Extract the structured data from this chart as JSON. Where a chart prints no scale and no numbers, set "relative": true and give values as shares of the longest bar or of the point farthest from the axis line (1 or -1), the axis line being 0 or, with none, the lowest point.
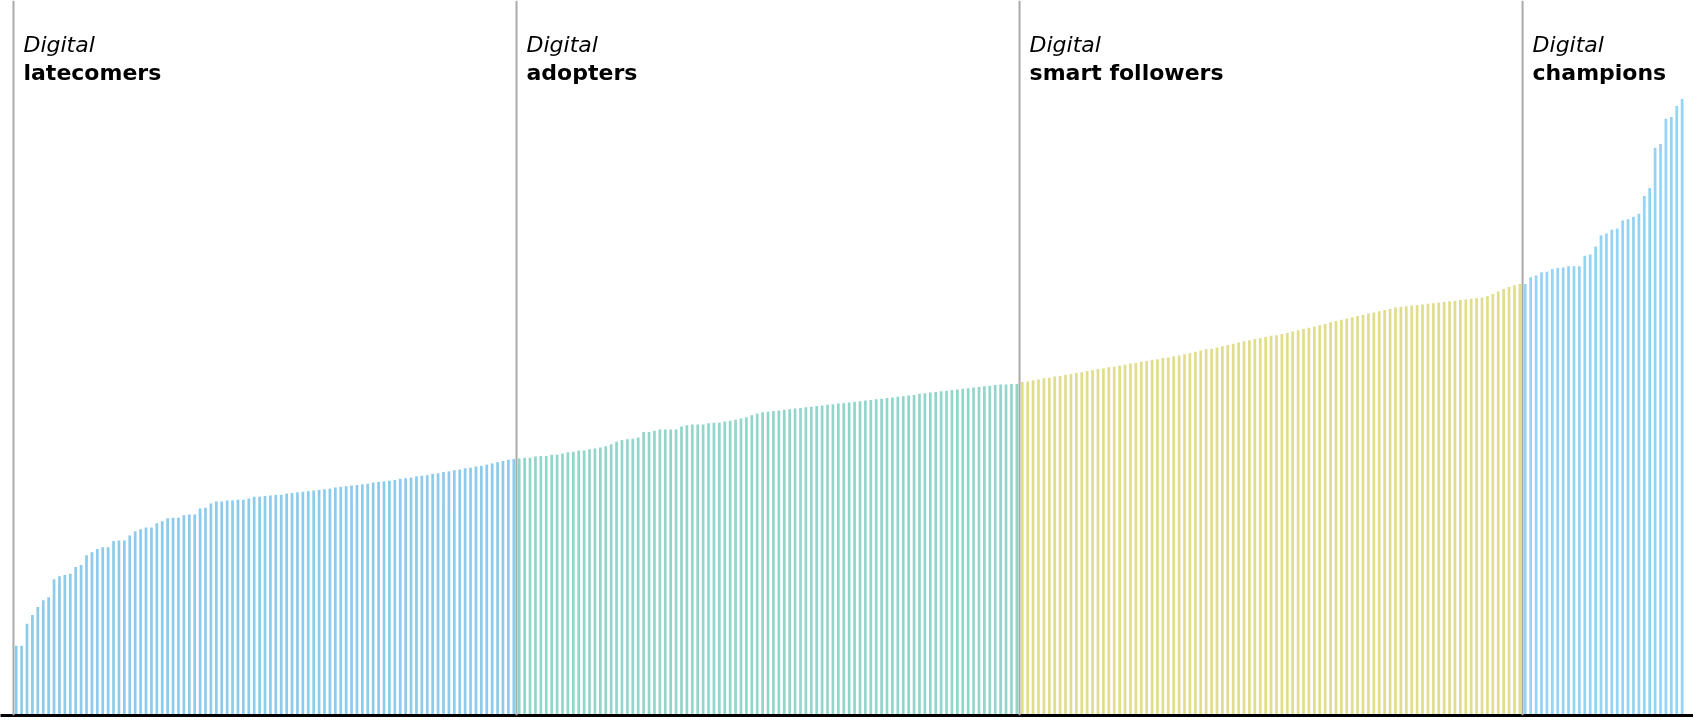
{
  "chart_data": {
    "type": "bar",
    "relative": true,
    "grid": false,
    "categories": [
      null,
      null,
      null,
      null,
      null,
      null,
      null,
      null,
      null,
      null,
      null,
      null,
      null,
      null,
      null,
      null,
      null,
      null,
      null,
      null,
      null,
      null,
      null,
      null,
      null,
      null,
      null,
      null,
      null,
      null,
      null,
      null,
      null,
      null,
      null,
      null,
      null,
      null,
      null,
      null,
      null,
      null,
      null,
      null,
      null,
      null,
      null,
      null,
      null,
      null,
      null,
      null,
      null,
      null,
      null,
      null,
      null,
      null,
      null,
      null,
      null,
      null,
      null,
      null,
      null,
      null,
      null,
      null,
      null,
      null,
      null,
      null,
      null,
      null,
      null,
      null,
      null,
      null,
      null,
      null,
      null,
      null,
      null,
      null,
      null,
      null,
      null,
      null,
      null,
      null,
      null,
      null,
      null,
      null,
      null,
      null,
      null,
      null,
      null,
      null,
      null,
      null,
      null,
      null,
      null,
      null,
      null,
      null,
      null,
      null,
      null,
      null,
      null,
      null,
      null,
      null,
      null,
      null,
      null,
      null,
      null,
      null,
      null,
      null,
      null,
      null,
      null,
      null,
      null,
      null,
      null,
      null,
      null,
      null,
      null,
      null,
      null,
      null,
      null,
      null,
      null,
      null,
      null,
      null,
      null,
      null,
      null,
      null,
      null,
      null,
      null,
      null,
      null,
      null,
      null,
      null,
      null,
      null,
      null,
      null,
      null,
      null,
      null,
      null,
      null,
      null,
      null,
      null,
      null,
      null,
      null,
      null,
      null,
      null,
      null,
      null,
      null,
      null,
      null,
      null,
      null,
      null,
      null,
      null,
      null,
      null,
      null,
      null,
      null,
      null,
      null,
      null,
      null,
      null,
      null,
      null,
      null,
      null,
      null,
      null,
      null,
      null,
      null,
      null,
      null,
      null,
      null,
      null,
      null,
      null,
      null,
      null,
      null,
      null,
      null,
      null,
      null,
      null,
      null,
      null,
      null,
      null,
      null,
      null,
      null,
      null,
      null,
      null,
      null,
      null,
      null,
      null,
      null,
      null,
      null,
      null,
      null,
      null,
      null,
      null,
      null,
      null,
      null,
      null,
      null,
      null,
      null,
      null,
      null,
      null,
      null,
      null,
      null,
      null,
      null,
      null,
      null,
      null,
      null,
      null,
      null,
      null,
      null,
      null,
      null,
      null,
      null,
      null,
      null,
      null,
      null,
      null,
      null,
      null,
      null,
      null,
      null,
      null,
      null,
      null,
      null,
      null,
      null,
      null,
      null,
      null,
      null,
      null,
      null,
      null,
      null,
      null,
      null,
      null,
      null,
      null,
      null,
      null,
      null,
      null,
      null,
      null,
      null,
      null,
      null,
      null,
      null,
      null,
      null
    ],
    "values": [
      0.113,
      0.113,
      0.149,
      0.163,
      0.176,
      0.187,
      0.192,
      0.221,
      0.226,
      0.228,
      0.23,
      0.241,
      0.244,
      0.26,
      0.265,
      0.27,
      0.273,
      0.273,
      0.283,
      0.284,
      0.284,
      0.292,
      0.299,
      0.302,
      0.305,
      0.305,
      0.312,
      0.315,
      0.32,
      0.321,
      0.321,
      0.325,
      0.326,
      0.326,
      0.336,
      0.337,
      0.344,
      0.347,
      0.347,
      0.349,
      0.349,
      0.35,
      0.35,
      0.352,
      0.355,
      0.355,
      0.356,
      0.357,
      0.358,
      0.358,
      0.36,
      0.361,
      0.362,
      0.363,
      0.364,
      0.365,
      0.366,
      0.367,
      0.368,
      0.37,
      0.371,
      0.372,
      0.373,
      0.374,
      0.375,
      0.376,
      0.378,
      0.379,
      0.38,
      0.381,
      0.382,
      0.384,
      0.385,
      0.386,
      0.388,
      0.389,
      0.39,
      0.392,
      0.393,
      0.395,
      0.396,
      0.398,
      0.399,
      0.401,
      0.402,
      0.404,
      0.405,
      0.407,
      0.409,
      0.411,
      0.413,
      0.415,
      0.416,
      0.417,
      0.418,
      0.418,
      0.42,
      0.421,
      0.421,
      0.423,
      0.423,
      0.425,
      0.427,
      0.428,
      0.43,
      0.43,
      0.432,
      0.433,
      0.435,
      0.437,
      0.44,
      0.444,
      0.447,
      0.448,
      0.449,
      0.451,
      0.46,
      0.46,
      0.462,
      0.464,
      0.464,
      0.464,
      0.464,
      0.469,
      0.471,
      0.472,
      0.472,
      0.472,
      0.474,
      0.475,
      0.475,
      0.477,
      0.478,
      0.48,
      0.482,
      0.484,
      0.487,
      0.49,
      0.492,
      0.493,
      0.494,
      0.495,
      0.496,
      0.497,
      0.498,
      0.499,
      0.5,
      0.501,
      0.502,
      0.503,
      0.504,
      0.505,
      0.506,
      0.507,
      0.508,
      0.509,
      0.51,
      0.511,
      0.512,
      0.513,
      0.514,
      0.515,
      0.516,
      0.517,
      0.518,
      0.519,
      0.52,
      0.522,
      0.523,
      0.524,
      0.525,
      0.526,
      0.527,
      0.528,
      0.529,
      0.53,
      0.531,
      0.532,
      0.533,
      0.534,
      0.535,
      0.536,
      0.537,
      0.537,
      0.538,
      0.538,
      0.541,
      0.542,
      0.544,
      0.545,
      0.547,
      0.548,
      0.55,
      0.551,
      0.553,
      0.554,
      0.556,
      0.557,
      0.559,
      0.56,
      0.562,
      0.563,
      0.565,
      0.566,
      0.568,
      0.569,
      0.571,
      0.572,
      0.574,
      0.575,
      0.577,
      0.578,
      0.58,
      0.581,
      0.583,
      0.584,
      0.586,
      0.588,
      0.59,
      0.592,
      0.594,
      0.595,
      0.597,
      0.599,
      0.601,
      0.603,
      0.605,
      0.607,
      0.609,
      0.611,
      0.612,
      0.614,
      0.616,
      0.617,
      0.619,
      0.621,
      0.623,
      0.625,
      0.627,
      0.629,
      0.631,
      0.633,
      0.635,
      0.638,
      0.64,
      0.642,
      0.644,
      0.646,
      0.648,
      0.65,
      0.652,
      0.654,
      0.656,
      0.658,
      0.66,
      0.662,
      0.663,
      0.664,
      0.665,
      0.666,
      0.667,
      0.668,
      0.669,
      0.67,
      0.671,
      0.672,
      0.673,
      0.674,
      0.675,
      0.676,
      0.677,
      0.678,
      0.68,
      0.684,
      0.688,
      0.692,
      0.695,
      0.698,
      0.7,
      0.7,
      0.711,
      0.714,
      0.719,
      0.72,
      0.724,
      0.726,
      0.727,
      0.729,
      0.729,
      0.729,
      0.746,
      0.748,
      0.761,
      0.779,
      0.782,
      0.788,
      0.79,
      0.803,
      0.805,
      0.809,
      0.814,
      0.843,
      0.856,
      0.921,
      0.927,
      0.968,
      0.971,
      0.989,
      1.0
    ],
    "colors": [
      "#8ccbec",
      "#8ccbec",
      "#8ccbec",
      "#8ccbec",
      "#8ccbec",
      "#8ccbec",
      "#8ccbec",
      "#8ccbec",
      "#8ccbec",
      "#8ccbec",
      "#8ccbec",
      "#8ccbec",
      "#8ccbec",
      "#8ccbec",
      "#8ccbec",
      "#8ccbec",
      "#8ccbec",
      "#8ccbec",
      "#8ccbec",
      "#8ccbec",
      "#8ccbec",
      "#8ccbec",
      "#8ccbec",
      "#8ccbec",
      "#8ccbec",
      "#8ccbec",
      "#8ccbec",
      "#8ccbec",
      "#8ccbec",
      "#8ccbec",
      "#8ccbec",
      "#8ccbec",
      "#8ccbec",
      "#8ccbec",
      "#8ccbec",
      "#8ccbec",
      "#8ccbec",
      "#8ccbec",
      "#8ccbec",
      "#8ccbec",
      "#8ccbec",
      "#8ccbec",
      "#8ccbec",
      "#8ccbec",
      "#8ccbec",
      "#8ccbec",
      "#8ccbec",
      "#8ccbec",
      "#8ccbec",
      "#8ccbec",
      "#8ccbec",
      "#8ccbec",
      "#8ccbec",
      "#8ccbec",
      "#8ccbec",
      "#8ccbec",
      "#8ccbec",
      "#8ccbec",
      "#8ccbec",
      "#8ccbec",
      "#8ccbec",
      "#8ccbec",
      "#8ccbec",
      "#8ccbec",
      "#8ccbec",
      "#8ccbec",
      "#8ccbec",
      "#8ccbec",
      "#8ccbec",
      "#8ccbec",
      "#8ccbec",
      "#8ccbec",
      "#8ccbec",
      "#8ccbec",
      "#8ccbec",
      "#8ccbec",
      "#8ccbec",
      "#8ccbec",
      "#8ccbec",
      "#8ccbec",
      "#8ccbec",
      "#8ccbec",
      "#8ccbec",
      "#8ccbec",
      "#8ccbec",
      "#8ccbec",
      "#8ccbec",
      "#8ccbec",
      "#8ccbec",
      "#8ccbec",
      "#8ccbec",
      "#8ccbec",
      "#8ccbec",
      "#92d6cb",
      "#92d6cb",
      "#92d6cb",
      "#92d6cb",
      "#92d6cb",
      "#92d6cb",
      "#92d6cb",
      "#92d6cb",
      "#92d6cb",
      "#92d6cb",
      "#92d6cb",
      "#92d6cb",
      "#92d6cb",
      "#92d6cb",
      "#92d6cb",
      "#92d6cb",
      "#92d6cb",
      "#92d6cb",
      "#92d6cb",
      "#92d6cb",
      "#92d6cb",
      "#92d6cb",
      "#92d6cb",
      "#92d6cb",
      "#92d6cb",
      "#92d6cb",
      "#92d6cb",
      "#92d6cb",
      "#92d6cb",
      "#92d6cb",
      "#92d6cb",
      "#92d6cb",
      "#92d6cb",
      "#92d6cb",
      "#92d6cb",
      "#92d6cb",
      "#92d6cb",
      "#92d6cb",
      "#92d6cb",
      "#92d6cb",
      "#92d6cb",
      "#92d6cb",
      "#92d6cb",
      "#92d6cb",
      "#92d6cb",
      "#92d6cb",
      "#92d6cb",
      "#92d6cb",
      "#92d6cb",
      "#92d6cb",
      "#92d6cb",
      "#92d6cb",
      "#92d6cb",
      "#92d6cb",
      "#92d6cb",
      "#92d6cb",
      "#92d6cb",
      "#92d6cb",
      "#92d6cb",
      "#92d6cb",
      "#92d6cb",
      "#92d6cb",
      "#92d6cb",
      "#92d6cb",
      "#92d6cb",
      "#92d6cb",
      "#92d6cb",
      "#92d6cb",
      "#92d6cb",
      "#92d6cb",
      "#92d6cb",
      "#92d6cb",
      "#92d6cb",
      "#92d6cb",
      "#92d6cb",
      "#92d6cb",
      "#92d6cb",
      "#92d6cb",
      "#92d6cb",
      "#92d6cb",
      "#92d6cb",
      "#92d6cb",
      "#92d6cb",
      "#92d6cb",
      "#92d6cb",
      "#92d6cb",
      "#92d6cb",
      "#92d6cb",
      "#92d6cb",
      "#92d6cb",
      "#92d6cb",
      "#92d6cb",
      "#92d6cb",
      "#e0dd8c",
      "#e0dd8c",
      "#e0dd8c",
      "#e0dd8c",
      "#e0dd8c",
      "#e0dd8c",
      "#e0dd8c",
      "#e0dd8c",
      "#e0dd8c",
      "#e0dd8c",
      "#e0dd8c",
      "#e0dd8c",
      "#e0dd8c",
      "#e0dd8c",
      "#e0dd8c",
      "#e0dd8c",
      "#e0dd8c",
      "#e0dd8c",
      "#e0dd8c",
      "#e0dd8c",
      "#e0dd8c",
      "#e0dd8c",
      "#e0dd8c",
      "#e0dd8c",
      "#e0dd8c",
      "#e0dd8c",
      "#e0dd8c",
      "#e0dd8c",
      "#e0dd8c",
      "#e0dd8c",
      "#e0dd8c",
      "#e0dd8c",
      "#e0dd8c",
      "#e0dd8c",
      "#e0dd8c",
      "#e0dd8c",
      "#e0dd8c",
      "#e0dd8c",
      "#e0dd8c",
      "#e0dd8c",
      "#e0dd8c",
      "#e0dd8c",
      "#e0dd8c",
      "#e0dd8c",
      "#e0dd8c",
      "#e0dd8c",
      "#e0dd8c",
      "#e0dd8c",
      "#e0dd8c",
      "#e0dd8c",
      "#e0dd8c",
      "#e0dd8c",
      "#e0dd8c",
      "#e0dd8c",
      "#e0dd8c",
      "#e0dd8c",
      "#e0dd8c",
      "#e0dd8c",
      "#e0dd8c",
      "#e0dd8c",
      "#e0dd8c",
      "#e0dd8c",
      "#e0dd8c",
      "#e0dd8c",
      "#e0dd8c",
      "#e0dd8c",
      "#e0dd8c",
      "#e0dd8c",
      "#e0dd8c",
      "#e0dd8c",
      "#e0dd8c",
      "#e0dd8c",
      "#e0dd8c",
      "#e0dd8c",
      "#e0dd8c",
      "#e0dd8c",
      "#e0dd8c",
      "#e0dd8c",
      "#e0dd8c",
      "#e0dd8c",
      "#e0dd8c",
      "#e0dd8c",
      "#e0dd8c",
      "#e0dd8c",
      "#e0dd8c",
      "#e0dd8c",
      "#e0dd8c",
      "#e0dd8c",
      "#e0dd8c",
      "#e0dd8c",
      "#e0dd8c",
      "#e0dd8c",
      "#e0dd8c",
      "#93d3f5",
      "#93d3f5",
      "#93d3f5",
      "#93d3f5",
      "#93d3f5",
      "#93d3f5",
      "#93d3f5",
      "#93d3f5",
      "#93d3f5",
      "#93d3f5",
      "#93d3f5",
      "#93d3f5",
      "#93d3f5",
      "#93d3f5",
      "#93d3f5",
      "#93d3f5",
      "#93d3f5",
      "#93d3f5",
      "#93d3f5",
      "#93d3f5",
      "#93d3f5",
      "#93d3f5",
      "#93d3f5",
      "#93d3f5",
      "#93d3f5",
      "#93d3f5",
      "#93d3f5",
      "#93d3f5",
      "#93d3f5",
      "#93d3f5"
    ],
    "annotations": [
      "Digital\nlatecomers",
      "Digital\nadopters",
      "Digital\nsmart followers",
      "Digital\nchampions"
    ]
  }
}
